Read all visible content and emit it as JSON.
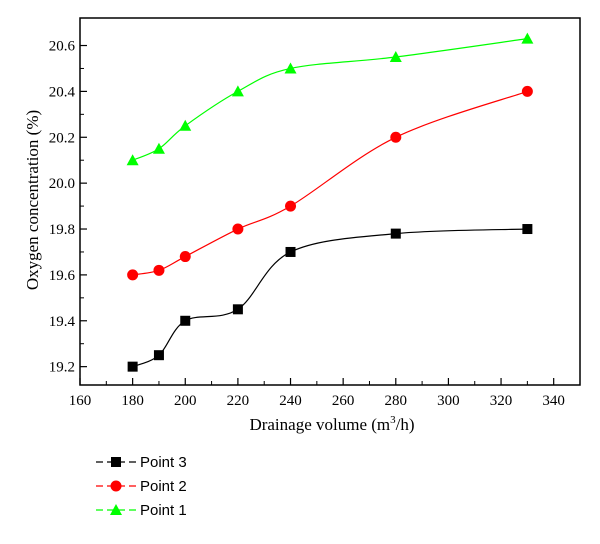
{
  "chart_data": {
    "type": "line",
    "xlabel": "Drainage volume (m",
    "xlabel_sup": "3",
    "xlabel_suffix": "/h)",
    "ylabel": "Oxygen concentration (%)",
    "xlim": [
      160,
      350
    ],
    "ylim": [
      19.12,
      20.72
    ],
    "xticks": [
      160,
      180,
      200,
      220,
      240,
      260,
      280,
      300,
      320,
      340
    ],
    "yticks": [
      19.2,
      19.4,
      19.6,
      19.8,
      20.0,
      20.2,
      20.4,
      20.6
    ],
    "x": [
      180,
      190,
      200,
      220,
      240,
      280,
      330
    ],
    "grid": false,
    "legend_position": "bottom-left",
    "series": [
      {
        "name": "Point 3",
        "marker": "square",
        "color": "#000000",
        "values": [
          19.2,
          19.25,
          19.4,
          19.45,
          19.7,
          19.78,
          19.8
        ]
      },
      {
        "name": "Point 2",
        "marker": "circle",
        "color": "#ff0000",
        "values": [
          19.6,
          19.62,
          19.68,
          19.8,
          19.9,
          20.2,
          20.4
        ]
      },
      {
        "name": "Point 1",
        "marker": "triangle",
        "color": "#00ff00",
        "values": [
          20.1,
          20.15,
          20.25,
          20.4,
          20.5,
          20.55,
          20.63
        ]
      }
    ]
  }
}
